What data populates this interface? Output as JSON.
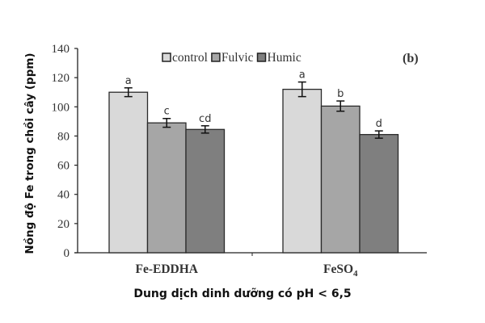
{
  "chart_data": {
    "type": "bar",
    "title": "",
    "panel_label": "(b)",
    "xlabel": "Dung dịch dinh dưỡng có pH < 6,5",
    "ylabel": "Nồng độ Fe trong chồi cây (ppm)",
    "ylim": [
      0,
      140
    ],
    "yticks": [
      0,
      20,
      40,
      60,
      80,
      100,
      120,
      140
    ],
    "grid": false,
    "legend_position": "top",
    "categories": [
      "Fe-EDDHA",
      "FeSO4"
    ],
    "category_labels": [
      {
        "main": "Fe-EDDHA",
        "sub": ""
      },
      {
        "main": "FeSO",
        "sub": "4"
      }
    ],
    "series": [
      {
        "name": "control",
        "color": "#d9d9d9",
        "values": [
          110,
          112
        ],
        "errors": [
          3,
          5
        ],
        "letters": [
          "a",
          "a"
        ]
      },
      {
        "name": "Fulvic",
        "color": "#a6a6a6",
        "values": [
          89,
          100.5
        ],
        "errors": [
          3,
          3.5
        ],
        "letters": [
          "c",
          "b"
        ]
      },
      {
        "name": "Humic",
        "color": "#7f7f7f",
        "values": [
          84.5,
          81
        ],
        "errors": [
          2.5,
          2.5
        ],
        "letters": [
          "cd",
          "d"
        ]
      }
    ]
  }
}
